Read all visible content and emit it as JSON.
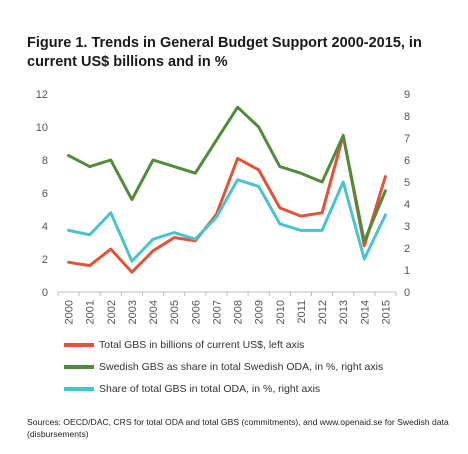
{
  "title": "Figure 1. Trends in General Budget Support 2000-2015, in current US$ billions and in %",
  "source": "Sources: OECD/DAC, CRS for total ODA and total GBS (commitments), and www.openaid.se for Swedish data (disbursements)",
  "chart_data": {
    "type": "line",
    "x": [
      "2000",
      "2001",
      "2002",
      "2003",
      "2004",
      "2005",
      "2006",
      "2007",
      "2008",
      "2009",
      "2010",
      "2011",
      "2012",
      "2013",
      "2014",
      "2015"
    ],
    "left_axis": {
      "range": [
        0,
        12
      ],
      "ticks": [
        "0",
        "2",
        "4",
        "6",
        "8",
        "10",
        "12"
      ]
    },
    "right_axis": {
      "range": [
        0,
        9
      ],
      "ticks": [
        "0",
        "1",
        "2",
        "3",
        "4",
        "5",
        "6",
        "7",
        "8",
        "9"
      ]
    },
    "grid": false,
    "legend_position": "bottom",
    "series": [
      {
        "name": "Total GBS in billions of current US$, left axis",
        "axis": "left",
        "color": "#e2533a",
        "values": [
          1.8,
          1.6,
          2.6,
          1.2,
          2.5,
          3.3,
          3.1,
          4.7,
          8.1,
          7.4,
          5.1,
          4.6,
          4.8,
          9.5,
          2.8,
          7.0
        ]
      },
      {
        "name": "Swedish GBS as share in total Swedish ODA, in %, right axis",
        "axis": "right",
        "color": "#538a3e",
        "values": [
          6.2,
          5.7,
          6.0,
          4.2,
          6.0,
          5.7,
          5.4,
          6.9,
          8.4,
          7.5,
          5.7,
          5.4,
          5.0,
          7.1,
          2.3,
          4.6
        ]
      },
      {
        "name": "Share of total GBS in total ODA, in %, right axis",
        "axis": "right",
        "color": "#4bc3cf",
        "values": [
          2.8,
          2.6,
          3.6,
          1.4,
          2.4,
          2.7,
          2.4,
          3.4,
          5.1,
          4.8,
          3.1,
          2.8,
          2.8,
          5.0,
          1.5,
          3.5
        ]
      }
    ]
  }
}
